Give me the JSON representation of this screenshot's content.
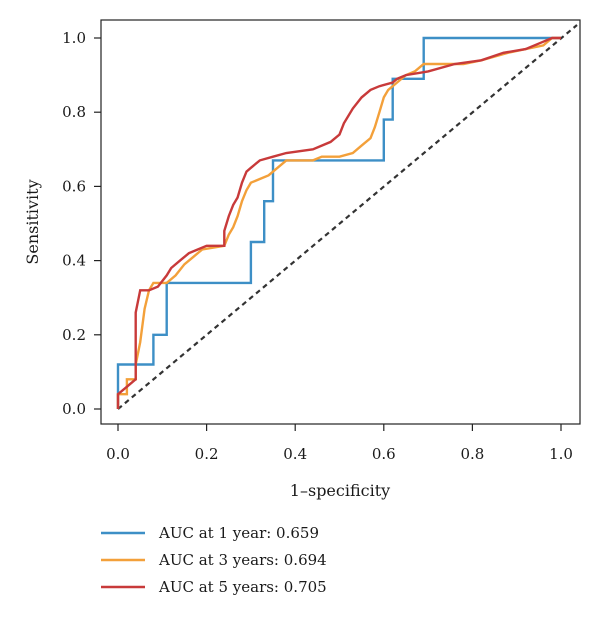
{
  "chart_data": {
    "type": "line",
    "title": "",
    "xlabel": "1–specificity",
    "ylabel": "Sensitivity",
    "xlim": [
      0,
      1
    ],
    "ylim": [
      0,
      1
    ],
    "x_ticks": [
      "0.0",
      "0.2",
      "0.4",
      "0.6",
      "0.8",
      "1.0"
    ],
    "y_ticks": [
      "0.0",
      "0.2",
      "0.4",
      "0.6",
      "0.8",
      "1.0"
    ],
    "grid": false,
    "legend_position": "bottom-left",
    "reference_line": {
      "style": "dashed",
      "color": "#333333",
      "from": [
        0,
        0
      ],
      "to": [
        1,
        1
      ]
    },
    "series": [
      {
        "name": "AUC at 1 year: 0.659",
        "color": "#3d8fc6",
        "points": [
          [
            0,
            0
          ],
          [
            0,
            0.12
          ],
          [
            0.08,
            0.12
          ],
          [
            0.08,
            0.16
          ],
          [
            0.08,
            0.2
          ],
          [
            0.11,
            0.2
          ],
          [
            0.11,
            0.34
          ],
          [
            0.3,
            0.34
          ],
          [
            0.3,
            0.45
          ],
          [
            0.33,
            0.45
          ],
          [
            0.33,
            0.56
          ],
          [
            0.35,
            0.56
          ],
          [
            0.35,
            0.67
          ],
          [
            0.6,
            0.67
          ],
          [
            0.6,
            0.78
          ],
          [
            0.62,
            0.78
          ],
          [
            0.62,
            0.89
          ],
          [
            0.69,
            0.89
          ],
          [
            0.69,
            1.0
          ],
          [
            1,
            1
          ]
        ]
      },
      {
        "name": "AUC at 3 years: 0.694",
        "color": "#f3a03a",
        "points": [
          [
            0,
            0
          ],
          [
            0,
            0.04
          ],
          [
            0.02,
            0.04
          ],
          [
            0.02,
            0.08
          ],
          [
            0.04,
            0.08
          ],
          [
            0.04,
            0.12
          ],
          [
            0.05,
            0.18
          ],
          [
            0.06,
            0.27
          ],
          [
            0.07,
            0.32
          ],
          [
            0.08,
            0.34
          ],
          [
            0.11,
            0.34
          ],
          [
            0.13,
            0.36
          ],
          [
            0.15,
            0.39
          ],
          [
            0.17,
            0.41
          ],
          [
            0.19,
            0.43
          ],
          [
            0.24,
            0.44
          ],
          [
            0.25,
            0.47
          ],
          [
            0.26,
            0.49
          ],
          [
            0.27,
            0.52
          ],
          [
            0.28,
            0.56
          ],
          [
            0.29,
            0.59
          ],
          [
            0.3,
            0.61
          ],
          [
            0.32,
            0.62
          ],
          [
            0.34,
            0.63
          ],
          [
            0.36,
            0.65
          ],
          [
            0.38,
            0.67
          ],
          [
            0.44,
            0.67
          ],
          [
            0.46,
            0.68
          ],
          [
            0.5,
            0.68
          ],
          [
            0.53,
            0.69
          ],
          [
            0.55,
            0.71
          ],
          [
            0.57,
            0.73
          ],
          [
            0.58,
            0.76
          ],
          [
            0.59,
            0.8
          ],
          [
            0.6,
            0.84
          ],
          [
            0.61,
            0.86
          ],
          [
            0.63,
            0.88
          ],
          [
            0.65,
            0.9
          ],
          [
            0.67,
            0.91
          ],
          [
            0.69,
            0.93
          ],
          [
            0.78,
            0.93
          ],
          [
            0.82,
            0.94
          ],
          [
            0.88,
            0.96
          ],
          [
            0.96,
            0.98
          ],
          [
            0.98,
            1.0
          ],
          [
            1,
            1
          ]
        ]
      },
      {
        "name": "AUC at 5 years: 0.705",
        "color": "#c83a3a",
        "points": [
          [
            0,
            0
          ],
          [
            0,
            0.04
          ],
          [
            0.04,
            0.08
          ],
          [
            0.04,
            0.26
          ],
          [
            0.05,
            0.32
          ],
          [
            0.07,
            0.32
          ],
          [
            0.09,
            0.33
          ],
          [
            0.11,
            0.36
          ],
          [
            0.12,
            0.38
          ],
          [
            0.14,
            0.4
          ],
          [
            0.16,
            0.42
          ],
          [
            0.18,
            0.43
          ],
          [
            0.2,
            0.44
          ],
          [
            0.24,
            0.44
          ],
          [
            0.24,
            0.48
          ],
          [
            0.25,
            0.52
          ],
          [
            0.26,
            0.55
          ],
          [
            0.27,
            0.57
          ],
          [
            0.28,
            0.61
          ],
          [
            0.29,
            0.64
          ],
          [
            0.3,
            0.65
          ],
          [
            0.32,
            0.67
          ],
          [
            0.35,
            0.68
          ],
          [
            0.38,
            0.69
          ],
          [
            0.44,
            0.7
          ],
          [
            0.48,
            0.72
          ],
          [
            0.5,
            0.74
          ],
          [
            0.51,
            0.77
          ],
          [
            0.53,
            0.81
          ],
          [
            0.55,
            0.84
          ],
          [
            0.57,
            0.86
          ],
          [
            0.59,
            0.87
          ],
          [
            0.62,
            0.88
          ],
          [
            0.63,
            0.89
          ],
          [
            0.65,
            0.9
          ],
          [
            0.7,
            0.91
          ],
          [
            0.76,
            0.93
          ],
          [
            0.82,
            0.94
          ],
          [
            0.87,
            0.96
          ],
          [
            0.92,
            0.97
          ],
          [
            0.96,
            0.99
          ],
          [
            0.98,
            1.0
          ],
          [
            1,
            1
          ]
        ]
      }
    ]
  }
}
